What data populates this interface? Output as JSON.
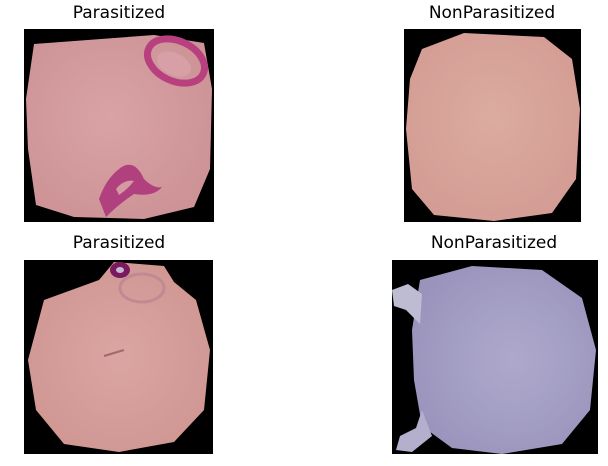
{
  "panels": [
    {
      "title": "Parasitized",
      "class": "parasitized",
      "cell_color": "#d49a9e",
      "stain_color": "#b0407e"
    },
    {
      "title": "NonParasitized",
      "class": "non-parasitized",
      "cell_color": "#d8a59b"
    },
    {
      "title": "Parasitized",
      "class": "parasitized",
      "cell_color": "#d59c98",
      "stain_color": "#8a2066"
    },
    {
      "title": "NonParasitized",
      "class": "non-parasitized",
      "cell_color": "#a29ec2"
    }
  ]
}
